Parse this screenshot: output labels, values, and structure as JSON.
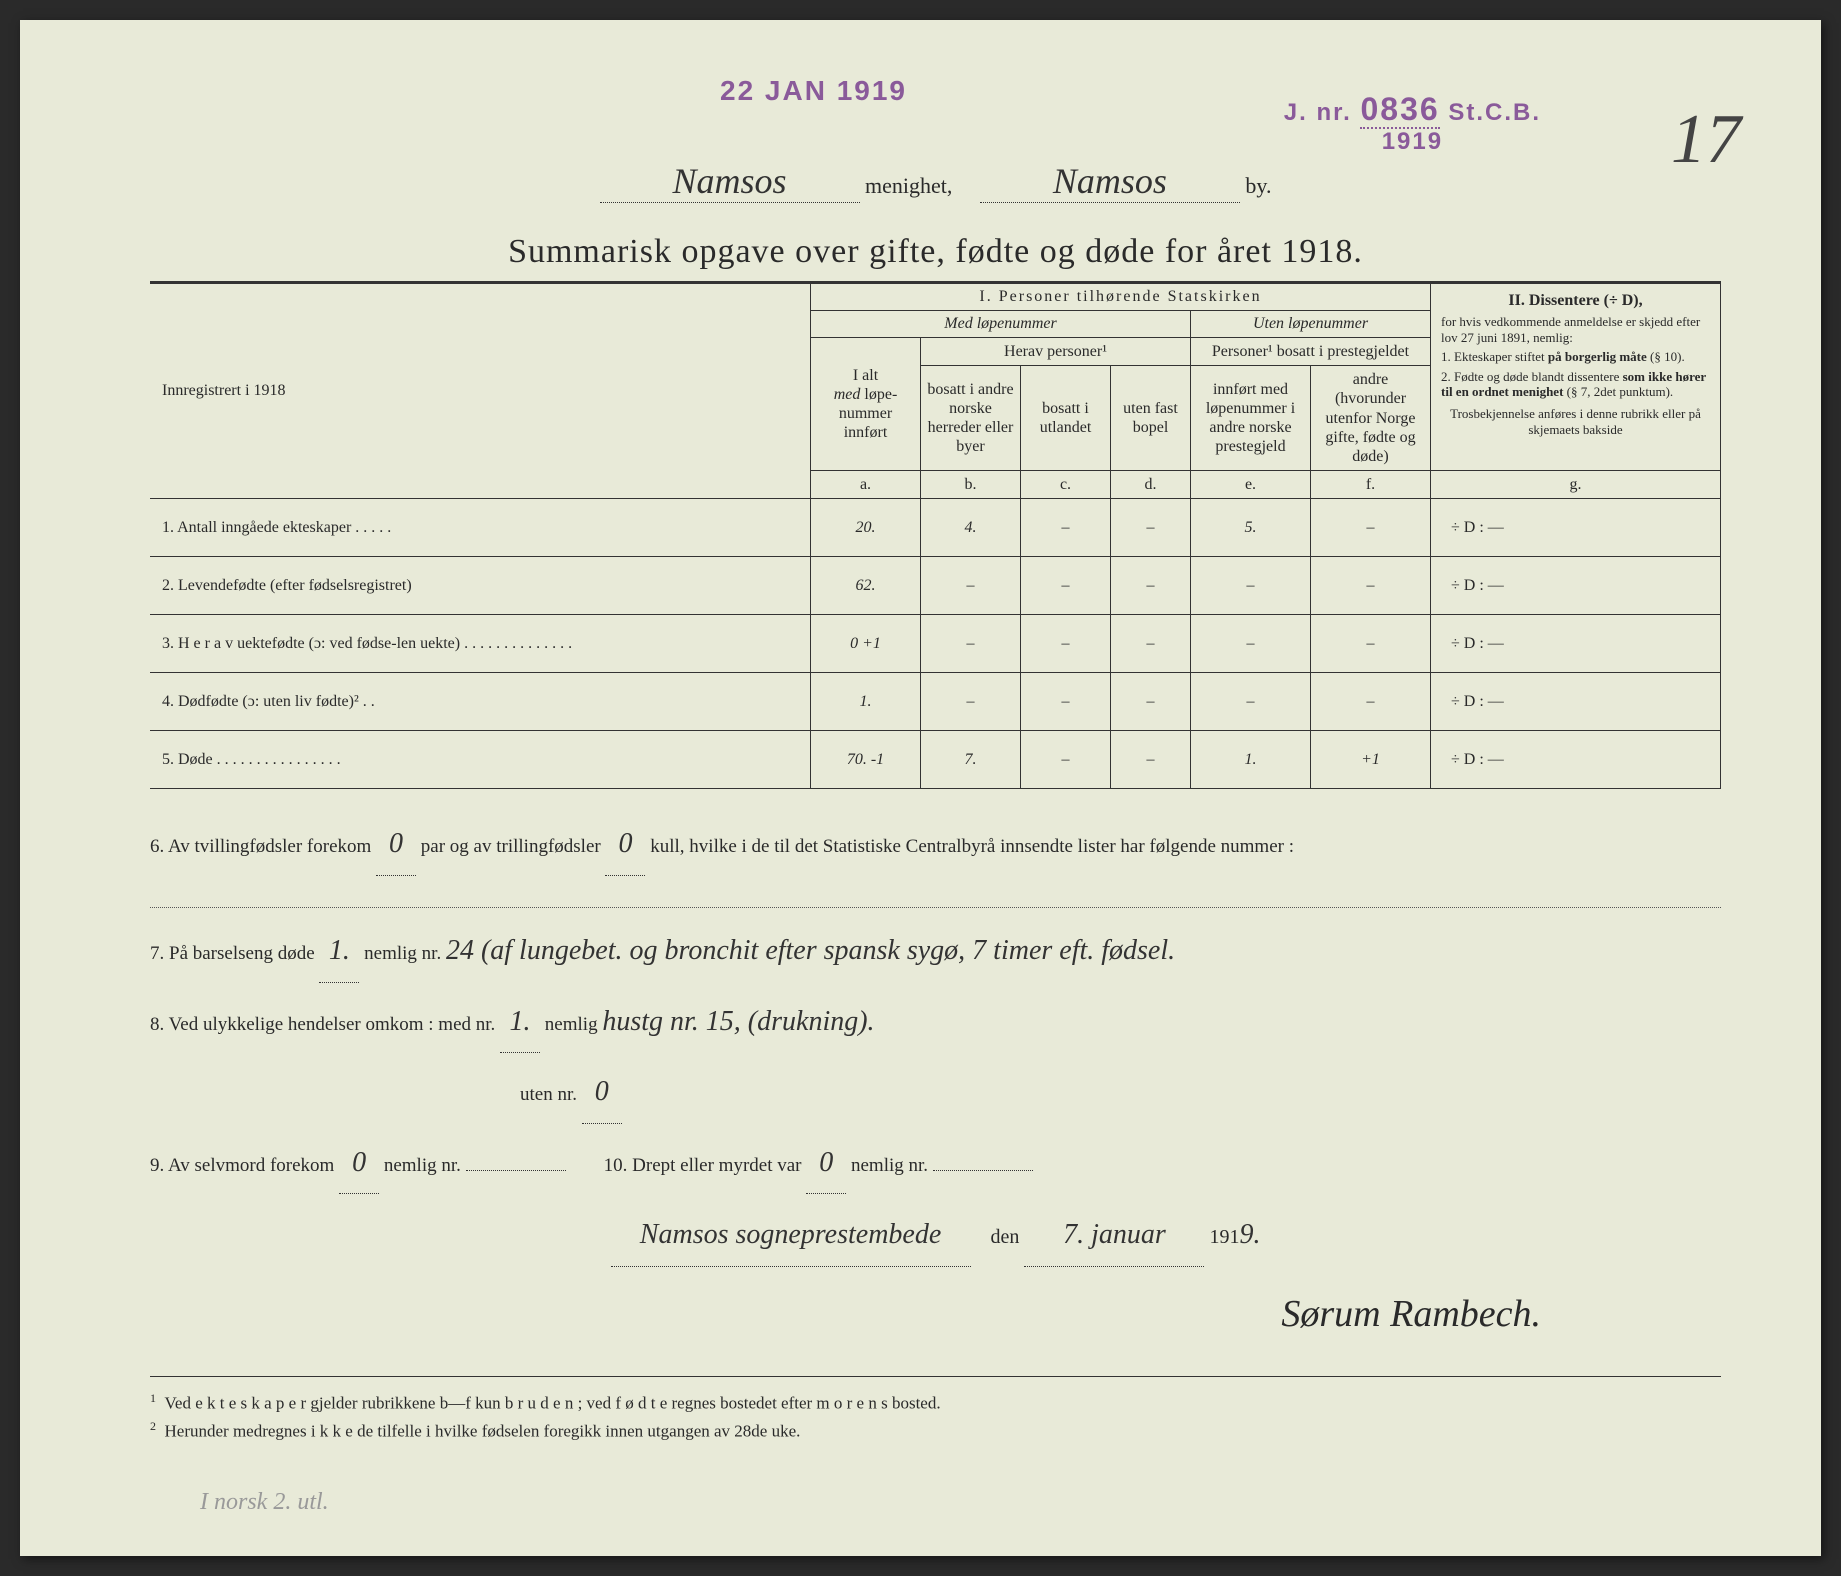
{
  "stamps": {
    "date": "22 JAN 1919",
    "jnr_prefix": "J. nr.",
    "jnr_num": "0836",
    "jnr_suffix": "St.C.B.",
    "jnr_year": "1919"
  },
  "page_number": "17",
  "header": {
    "parish": "Namsos",
    "parish_label": "menighet,",
    "town": "Namsos",
    "town_label": "by."
  },
  "title": "Summarisk opgave over gifte, fødte og døde for året 1918.",
  "table": {
    "col_left_header": "Innregistrert i 1918",
    "section1": "I.  Personer tilhørende Statskirken",
    "med_lope": "Med løpenummer",
    "uten_lope": "Uten løpenummer",
    "herav": "Herav personer¹",
    "personer_bosatt": "Personer¹ bosatt i prestegjeldet",
    "ialt": "I alt med løpe-nummer innført",
    "col_b": "bosatt i andre norske herreder eller byer",
    "col_c": "bosatt i utlandet",
    "col_d": "uten fast bopel",
    "col_e": "innført med løpenummer i andre norske prestegjeld",
    "col_f": "andre (hvorunder utenfor Norge gifte, fødte og døde)",
    "letters": {
      "a": "a.",
      "b": "b.",
      "c": "c.",
      "d": "d.",
      "e": "e.",
      "f": "f.",
      "g": "g."
    },
    "section2_title": "II.  Dissentere (÷ D),",
    "section2_body1": "for hvis vedkommende anmeldelse er skjedd efter lov 27 juni 1891, nemlig:",
    "section2_item1": "1. Ekteskaper stiftet på borgerlig måte (§ 10).",
    "section2_item2": "2. Fødte og døde blandt dissentere som ikke hører til en ordnet menighet (§ 7, 2det punktum).",
    "section2_note": "Trosbekjennelse anføres i denne rubrikk eller på skjemaets bakside",
    "rows": [
      {
        "num": "1.",
        "label": "Antall inngåede ekteskaper . . . . .",
        "a": "20.",
        "b": "4.",
        "c": "–",
        "d": "–",
        "e": "5.",
        "f": "–",
        "g": "÷ D :        —"
      },
      {
        "num": "2.",
        "label": "Levendefødte (efter fødselsregistret)",
        "a": "62.",
        "b": "–",
        "c": "–",
        "d": "–",
        "e": "–",
        "f": "–",
        "g": "÷ D :        —"
      },
      {
        "num": "3.",
        "label": "H e r a v uektefødte (ɔ: ved fødse-len uekte) . . . . . . . . . . . . . .",
        "a": "0 +1",
        "b": "–",
        "c": "–",
        "d": "–",
        "e": "–",
        "f": "–",
        "g": "÷ D :        —"
      },
      {
        "num": "4.",
        "label": "Dødfødte (ɔ: uten liv fødte)² . .",
        "a": "1.",
        "b": "–",
        "c": "–",
        "d": "–",
        "e": "–",
        "f": "–",
        "g": "÷ D :        —"
      },
      {
        "num": "5.",
        "label": "Døde . . . . . . . . . . . . . . . .",
        "a": "70. -1",
        "b": "7.",
        "c": "–",
        "d": "–",
        "e": "1.",
        "f": "+1",
        "g": "÷ D :        —"
      }
    ]
  },
  "below": {
    "l6a": "6. Av tvillingfødsler forekom",
    "l6_twins": "0",
    "l6b": "par og av trillingfødsler",
    "l6_triplets": "0",
    "l6c": "kull, hvilke i de til det Statistiske Centralbyrå innsendte lister har følgende nummer :",
    "l7a": "7. På barselseng døde",
    "l7_val": "1.",
    "l7b": "nemlig nr.",
    "l7_text": "24 (af lungebet. og bronchit efter spansk sygø, 7 timer eft. fødsel.",
    "l8a": "8. Ved ulykkelige hendelser omkom :  med nr.",
    "l8_med": "1.",
    "l8b": "nemlig",
    "l8_text": "hustg nr. 15, (drukning).",
    "l8c": "uten nr.",
    "l8_uten": "0",
    "l9a": "9. Av selvmord forekom",
    "l9_val": "0",
    "l9b": "nemlig nr.",
    "l10a": "10. Drept eller myrdet var",
    "l10_val": "0",
    "l10b": "nemlig nr."
  },
  "signing": {
    "place": "Namsos sogneprestembede",
    "den": "den",
    "date": "7. januar",
    "year_prefix": "191",
    "year_suffix": "9.",
    "signature": "Sørum Rambech."
  },
  "footnotes": {
    "f1": "Ved e k t e s k a p e r gjelder rubrikkene b—f kun b r u d e n ; ved f ø d t e regnes bostedet efter m o r e n s bosted.",
    "f2": "Herunder medregnes i k k e de tilfelle i hvilke fødselen foregikk innen utgangen av 28de uke."
  },
  "pencil_note": "I norsk 2. utl.",
  "colors": {
    "paper": "#e8ead8",
    "ink": "#2a2a2a",
    "stamp": "#8a5a9a"
  }
}
